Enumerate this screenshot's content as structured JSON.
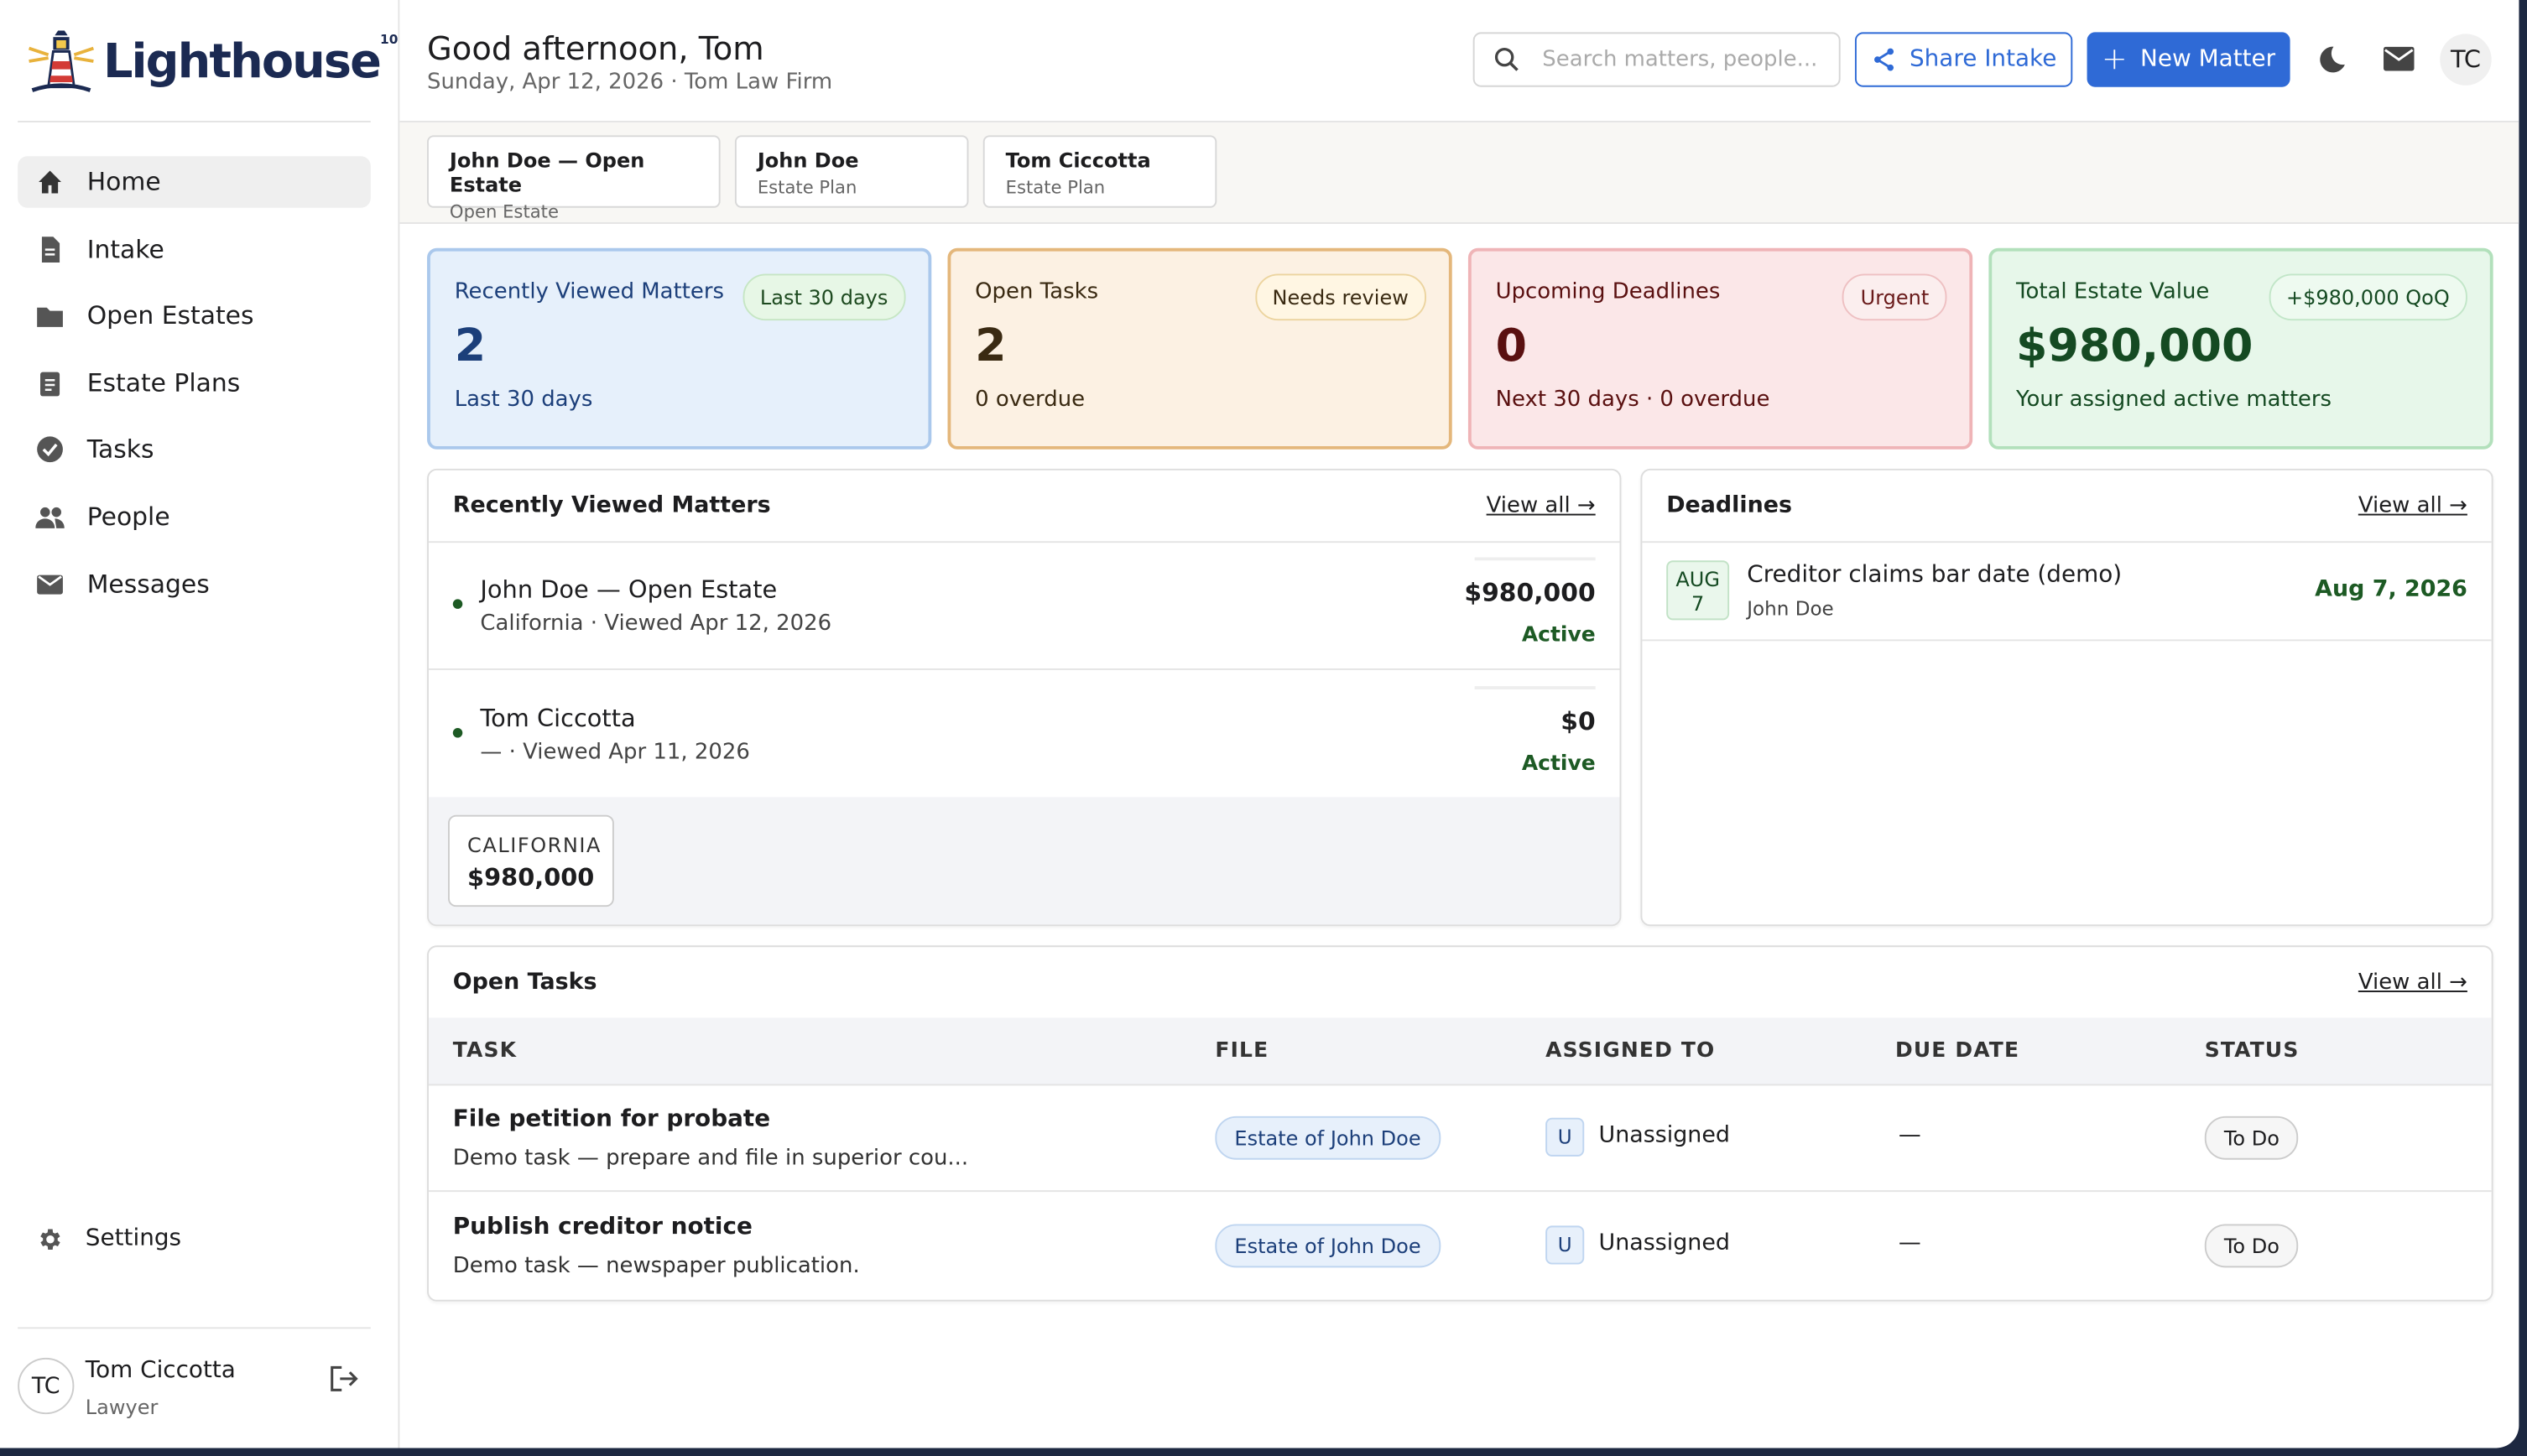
{
  "brand": {
    "name": "Lighthouse",
    "badge": "10"
  },
  "nav": [
    {
      "label": "Home"
    },
    {
      "label": "Intake"
    },
    {
      "label": "Open Estates"
    },
    {
      "label": "Estate Plans"
    },
    {
      "label": "Tasks"
    },
    {
      "label": "People"
    },
    {
      "label": "Messages"
    }
  ],
  "settings": "Settings",
  "user": {
    "initials": "TC",
    "name": "Tom Ciccotta",
    "role": "Lawyer"
  },
  "header": {
    "greeting": "Good afternoon, Tom",
    "subtitle": "Sunday, Apr 12, 2026 · Tom Law Firm",
    "search_placeholder": "Search matters, people...",
    "share": "Share Intake",
    "new": "New Matter",
    "avatar": "TC"
  },
  "tabs": [
    {
      "title": "John Doe — Open Estate",
      "sub": "Open Estate"
    },
    {
      "title": "John Doe",
      "sub": "Estate Plan"
    },
    {
      "title": "Tom Ciccotta",
      "sub": "Estate Plan"
    }
  ],
  "stats": [
    {
      "label": "Recently Viewed Matters",
      "badge": "Last 30 days",
      "value": "2",
      "note": "Last 30 days"
    },
    {
      "label": "Open Tasks",
      "badge": "Needs review",
      "value": "2",
      "note": "0 overdue"
    },
    {
      "label": "Upcoming Deadlines",
      "badge": "Urgent",
      "value": "0",
      "note": "Next 30 days · 0 overdue"
    },
    {
      "label": "Total Estate Value",
      "badge": "+$980,000 QoQ",
      "value": "$980,000",
      "note": "Your assigned active matters"
    }
  ],
  "recent": {
    "title": "Recently Viewed Matters",
    "view_all": "View all →",
    "items": [
      {
        "name": "John Doe — Open Estate",
        "meta": "California · Viewed Apr 12, 2026",
        "amount": "$980,000",
        "status": "Active"
      },
      {
        "name": "Tom Ciccotta",
        "meta": "— · Viewed Apr 11, 2026",
        "amount": "$0",
        "status": "Active"
      }
    ],
    "summary": {
      "label": "CALIFORNIA",
      "value": "$980,000"
    }
  },
  "deadlines": {
    "title": "Deadlines",
    "view_all": "View all →",
    "items": [
      {
        "month": "AUG",
        "day": "7",
        "title": "Creditor claims bar date (demo)",
        "sub": "John Doe",
        "date": "Aug 7, 2026"
      }
    ]
  },
  "tasks": {
    "title": "Open Tasks",
    "view_all": "View all →",
    "columns": [
      "TASK",
      "FILE",
      "ASSIGNED TO",
      "DUE DATE",
      "STATUS"
    ],
    "rows": [
      {
        "task": "File petition for probate",
        "desc": "Demo task — prepare and file in superior cou...",
        "file": "Estate of John Doe",
        "badge": "U",
        "assignee": "Unassigned",
        "due": "—",
        "status": "To Do"
      },
      {
        "task": "Publish creditor notice",
        "desc": "Demo task — newspaper publication.",
        "file": "Estate of John Doe",
        "badge": "U",
        "assignee": "Unassigned",
        "due": "—",
        "status": "To Do"
      }
    ]
  }
}
